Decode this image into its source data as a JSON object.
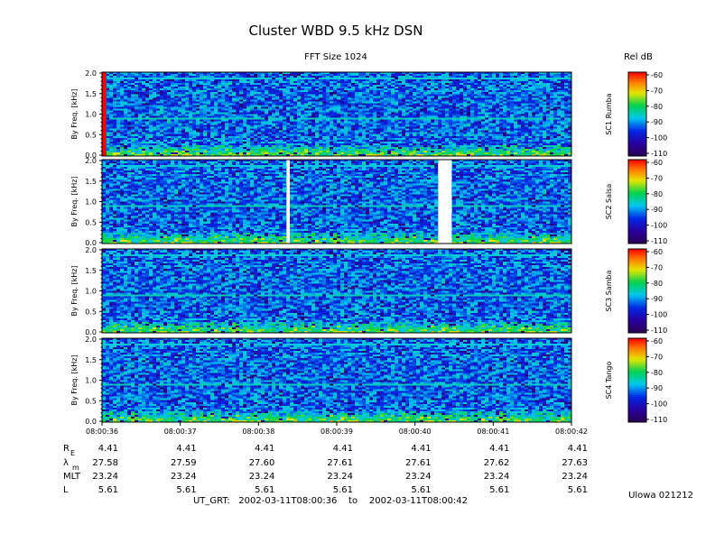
{
  "figure": {
    "title": "Cluster WBD 9.5 kHz DSN",
    "subtitle": "FFT Size 1024",
    "colorbar_title": "Rel dB",
    "footer_ut": "UT_GRT:   2002-03-11T08:00:36    to    2002-03-11T08:00:42",
    "footer_id": "Ulowa 021212"
  },
  "colors": {
    "background": "#ffffff",
    "gap": "#ffffff",
    "start_marker": "#ff0000"
  },
  "chart_data": {
    "type": "heatmap",
    "panels": [
      {
        "name": "SC1 Rumba",
        "ylabel": "By Freq. [kHz]",
        "ylim": [
          0,
          2.0
        ],
        "yticks": [
          "0.0",
          "0.5",
          "1.0",
          "1.5",
          "2.0"
        ],
        "gaps": [],
        "start_marker": true
      },
      {
        "name": "SC2 Salsa",
        "ylabel": "By Freq. [kHz]",
        "ylim": [
          0,
          2.0
        ],
        "yticks": [
          "0.0",
          "0.5",
          "1.0",
          "1.5",
          "2.0"
        ],
        "gaps": [
          [
            0.393,
            0.4
          ],
          [
            0.716,
            0.745
          ]
        ],
        "start_marker": false
      },
      {
        "name": "SC3 Samba",
        "ylabel": "By Freq. [kHz]",
        "ylim": [
          0,
          2.0
        ],
        "yticks": [
          "0.0",
          "0.5",
          "1.0",
          "1.5",
          "2.0"
        ],
        "gaps": [],
        "start_marker": false
      },
      {
        "name": "SC4 Tango",
        "ylabel": "By Freq. [kHz]",
        "ylim": [
          0,
          2.0
        ],
        "yticks": [
          "0.0",
          "0.5",
          "1.0",
          "1.5",
          "2.0"
        ],
        "gaps": [],
        "start_marker": false
      }
    ],
    "xticks": [
      "08:00:36",
      "08:00:37",
      "08:00:38",
      "08:00:39",
      "08:00:40",
      "08:00:41",
      "08:00:42"
    ],
    "colorbar": {
      "label": "Rel dB",
      "range": [
        -110,
        -60
      ],
      "ticks": [
        "-60",
        "-70",
        "-80",
        "-90",
        "-100",
        "-110"
      ]
    },
    "ephemeris": {
      "labels": [
        "R",
        "λ",
        "MLT",
        "L"
      ],
      "label_subscripts": [
        "E",
        "m",
        "",
        ""
      ],
      "rows": [
        [
          "4.41",
          "4.41",
          "4.41",
          "4.41",
          "4.41",
          "4.41",
          "4.41"
        ],
        [
          "27.58",
          "27.59",
          "27.60",
          "27.61",
          "27.61",
          "27.62",
          "27.63"
        ],
        [
          "23.24",
          "23.24",
          "23.24",
          "23.24",
          "23.24",
          "23.24",
          "23.24"
        ],
        [
          "5.61",
          "5.61",
          "5.61",
          "5.61",
          "5.61",
          "5.61",
          "5.61"
        ]
      ]
    }
  }
}
